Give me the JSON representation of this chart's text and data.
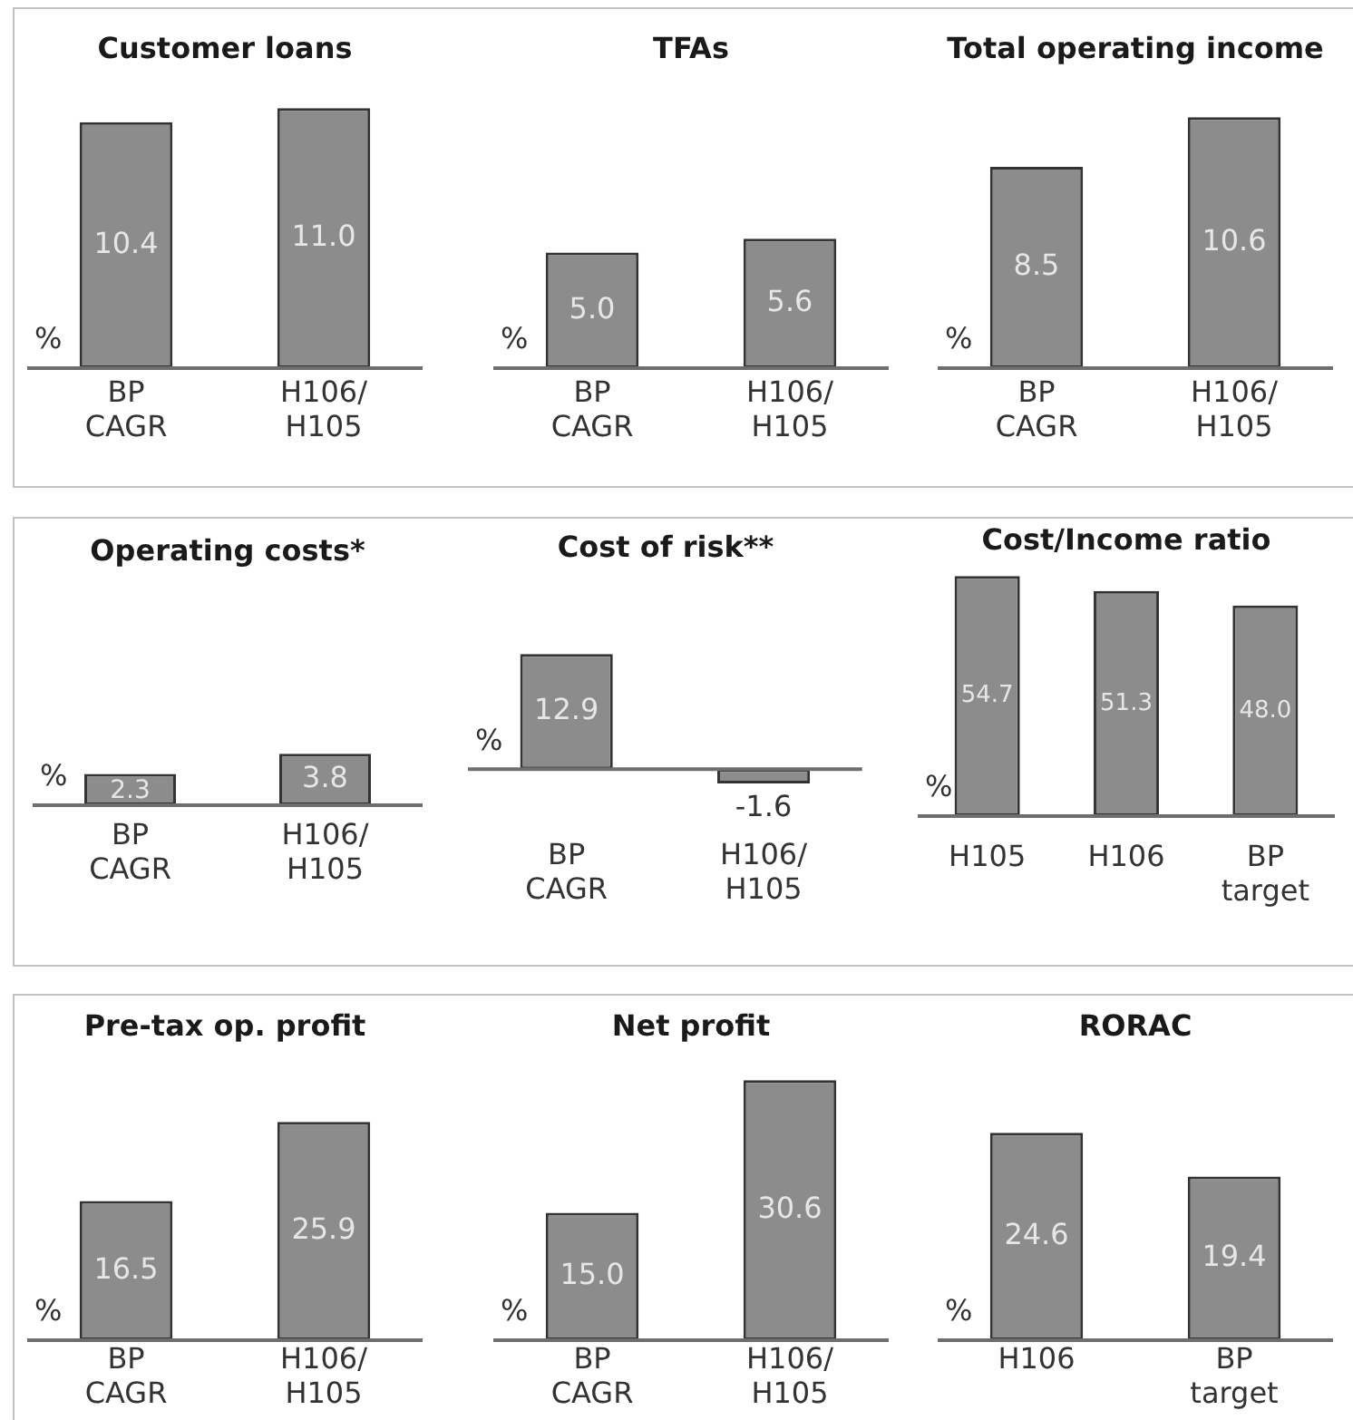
{
  "chart_data": [
    {
      "type": "bar",
      "title": "Customer loans",
      "ylabel": "%",
      "categories": [
        "BP CAGR",
        "H106/H105"
      ],
      "values": [
        10.4,
        11.0
      ],
      "value_labels": [
        "10.4",
        "11.0"
      ],
      "color": "#8c8c8c"
    },
    {
      "type": "bar",
      "title": "TFAs",
      "ylabel": "%",
      "categories": [
        "BP CAGR",
        "H106/H105"
      ],
      "values": [
        5.0,
        5.6
      ],
      "value_labels": [
        "5.0",
        "5.6"
      ],
      "color": "#8c8c8c"
    },
    {
      "type": "bar",
      "title": "Total operating income",
      "ylabel": "%",
      "categories": [
        "BP CAGR",
        "H106/H105"
      ],
      "values": [
        8.5,
        10.6
      ],
      "value_labels": [
        "8.5",
        "10.6"
      ],
      "color": "#8c8c8c"
    },
    {
      "type": "bar",
      "title": "Operating costs*",
      "ylabel": "%",
      "categories": [
        "BP CAGR",
        "H106/H105"
      ],
      "values": [
        2.3,
        3.8
      ],
      "value_labels": [
        "2.3",
        "3.8"
      ],
      "color": "#8c8c8c"
    },
    {
      "type": "bar",
      "title": "Cost of risk**",
      "ylabel": "%",
      "categories": [
        "BP CAGR",
        "H106/H105"
      ],
      "values": [
        12.9,
        -1.6
      ],
      "value_labels": [
        "12.9",
        "-1.6"
      ],
      "color": "#8c8c8c"
    },
    {
      "type": "bar",
      "title": "Cost/Income ratio",
      "ylabel": "%",
      "categories": [
        "H105",
        "H106",
        "BP target"
      ],
      "values": [
        54.7,
        51.3,
        48.0
      ],
      "value_labels": [
        "54.7",
        "51.3",
        "48.0"
      ],
      "color": "#8c8c8c"
    },
    {
      "type": "bar",
      "title": "Pre-tax op. profit",
      "ylabel": "%",
      "categories": [
        "BP CAGR",
        "H106/H105"
      ],
      "values": [
        16.5,
        25.9
      ],
      "value_labels": [
        "16.5",
        "25.9"
      ],
      "color": "#8c8c8c"
    },
    {
      "type": "bar",
      "title": "Net profit",
      "ylabel": "%",
      "categories": [
        "BP CAGR",
        "H106/H105"
      ],
      "values": [
        15.0,
        30.6
      ],
      "value_labels": [
        "15.0",
        "30.6"
      ],
      "color": "#8c8c8c"
    },
    {
      "type": "bar",
      "title": "RORAC",
      "ylabel": "%",
      "categories": [
        "H106",
        "BP target"
      ],
      "values": [
        24.6,
        19.4
      ],
      "value_labels": [
        "24.6",
        "19.4"
      ],
      "color": "#8c8c8c"
    }
  ]
}
